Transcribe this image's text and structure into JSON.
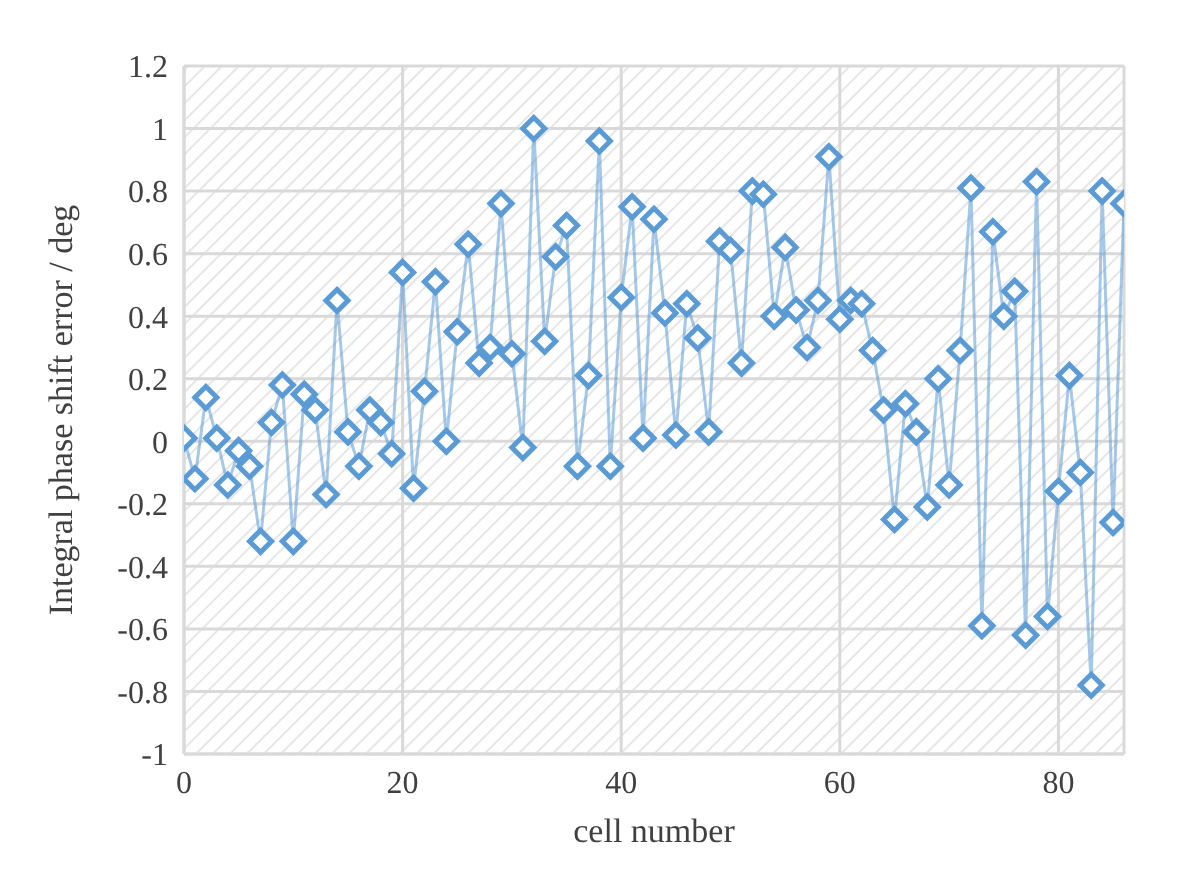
{
  "chart_data": {
    "type": "line",
    "xlabel": "cell number",
    "ylabel": "Integral phase shift error / deg",
    "x": [
      0,
      1,
      2,
      3,
      4,
      5,
      6,
      7,
      8,
      9,
      10,
      11,
      12,
      13,
      14,
      15,
      16,
      17,
      18,
      19,
      20,
      21,
      22,
      23,
      24,
      25,
      26,
      27,
      28,
      29,
      30,
      31,
      32,
      33,
      34,
      35,
      36,
      37,
      38,
      39,
      40,
      41,
      42,
      43,
      44,
      45,
      46,
      47,
      48,
      49,
      50,
      51,
      52,
      53,
      54,
      55,
      56,
      57,
      58,
      59,
      60,
      61,
      62,
      63,
      64,
      65,
      66,
      67,
      68,
      69,
      70,
      71,
      72,
      73,
      74,
      75,
      76,
      77,
      78,
      79,
      80,
      81,
      82,
      83,
      84,
      85,
      86
    ],
    "series": [
      {
        "color": "#5b9bd5",
        "values": [
          0.01,
          -0.12,
          0.14,
          0.01,
          -0.14,
          -0.03,
          -0.08,
          -0.32,
          0.06,
          0.18,
          -0.32,
          0.15,
          0.1,
          -0.17,
          0.45,
          0.03,
          -0.08,
          0.1,
          0.06,
          -0.04,
          0.54,
          -0.15,
          0.16,
          0.51,
          0.0,
          0.35,
          0.63,
          0.25,
          0.3,
          0.76,
          0.28,
          -0.02,
          1.0,
          0.32,
          0.59,
          0.69,
          -0.08,
          0.21,
          0.96,
          -0.08,
          0.46,
          0.75,
          0.01,
          0.71,
          0.41,
          0.02,
          0.44,
          0.33,
          0.03,
          0.64,
          0.61,
          0.25,
          0.8,
          0.79,
          0.4,
          0.62,
          0.42,
          0.3,
          0.45,
          0.91,
          0.39,
          0.45,
          0.44,
          0.29,
          0.1,
          -0.25,
          0.12,
          0.03,
          -0.21,
          0.2,
          -0.14,
          0.29,
          0.81,
          -0.59,
          0.67,
          0.4,
          0.48,
          -0.62,
          0.83,
          -0.56,
          -0.16,
          0.21,
          -0.1,
          -0.78,
          0.8,
          -0.26,
          0.76
        ]
      }
    ],
    "xlim": [
      0,
      86
    ],
    "xticks": [
      0,
      20,
      40,
      60,
      80
    ],
    "ylim": [
      -1,
      1.2
    ],
    "yticks": [
      -1,
      -0.8,
      -0.6,
      -0.4,
      -0.2,
      0,
      0.2,
      0.4,
      0.6,
      0.8,
      1,
      1.2
    ],
    "grid": true,
    "marker": "diamond",
    "line_style": "solid",
    "legend": false
  }
}
